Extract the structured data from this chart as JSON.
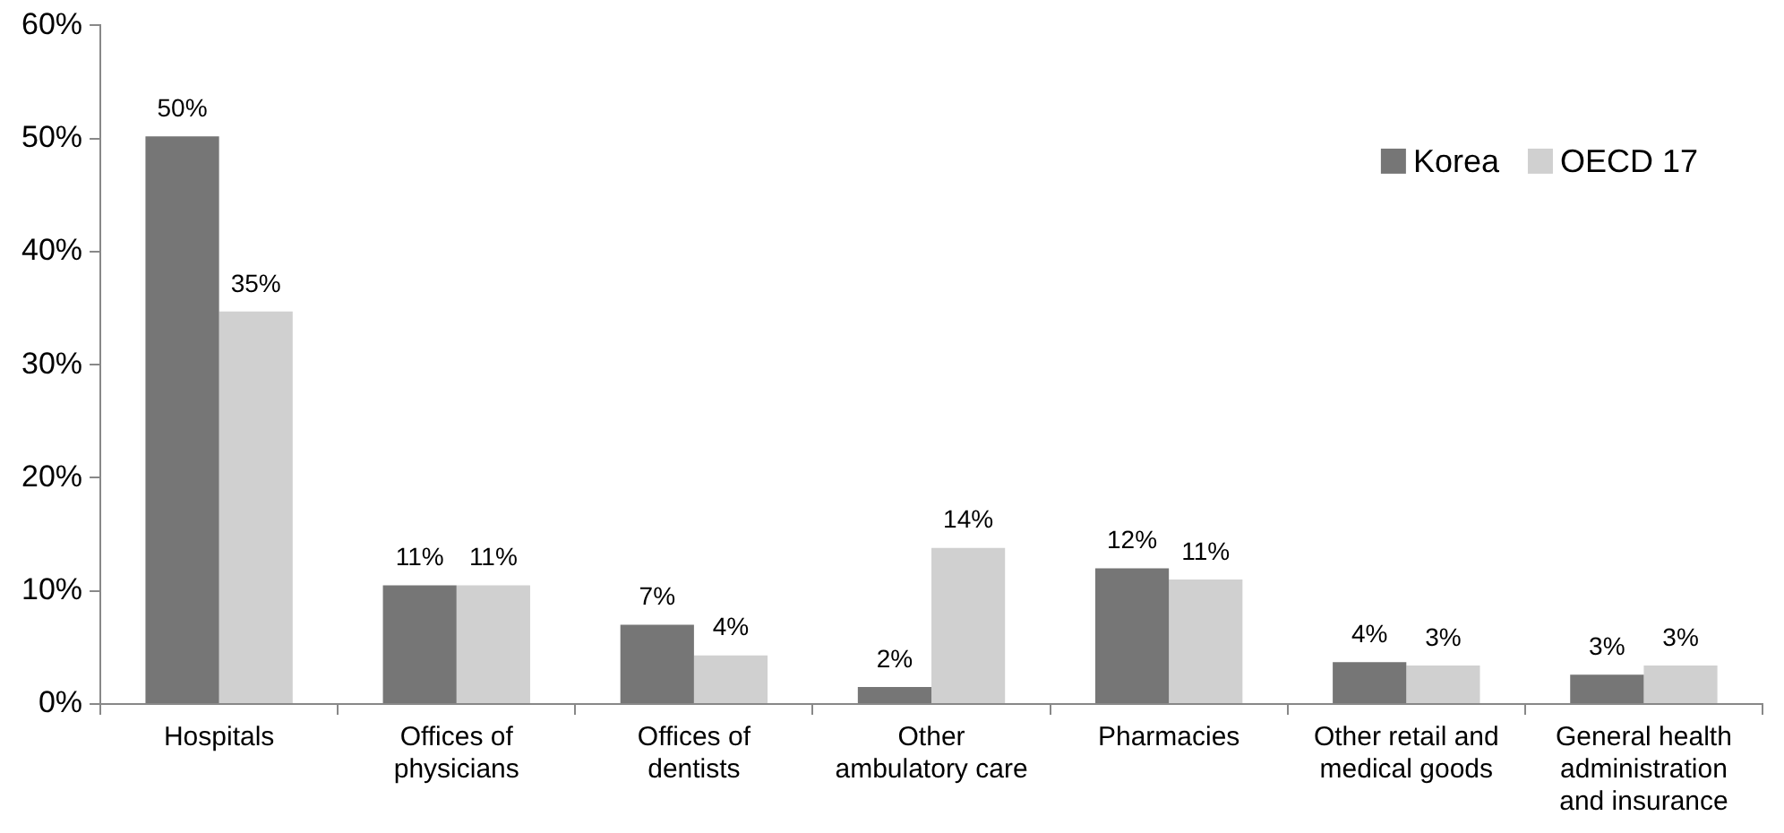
{
  "chart_data": {
    "type": "bar",
    "categories": [
      "Hospitals",
      "Offices of physicians",
      "Offices of dentists",
      "Other ambulatory care",
      "Pharmacies",
      "Other retail and medical goods",
      "General health administration and insurance"
    ],
    "series": [
      {
        "name": "Korea",
        "color": "#767676",
        "values": [
          50.2,
          10.5,
          7,
          1.5,
          12,
          3.7,
          2.6
        ],
        "value_labels": [
          "50%",
          "11%",
          "7%",
          "2%",
          "12%",
          "4%",
          "3%"
        ]
      },
      {
        "name": "OECD 17",
        "color": "#d0d0d0",
        "values": [
          34.7,
          10.5,
          4.3,
          13.8,
          11,
          3.4,
          3.4
        ],
        "value_labels": [
          "35%",
          "11%",
          "4%",
          "14%",
          "11%",
          "3%",
          "3%"
        ]
      }
    ],
    "ylim": [
      0,
      60
    ],
    "yticks": [
      {
        "value": 0,
        "label": "0%"
      },
      {
        "value": 10,
        "label": "10%"
      },
      {
        "value": 20,
        "label": "20%"
      },
      {
        "value": 30,
        "label": "30%"
      },
      {
        "value": 40,
        "label": "40%"
      },
      {
        "value": 50,
        "label": "50%"
      },
      {
        "value": 60,
        "label": "60%"
      }
    ],
    "legend": "top right"
  }
}
